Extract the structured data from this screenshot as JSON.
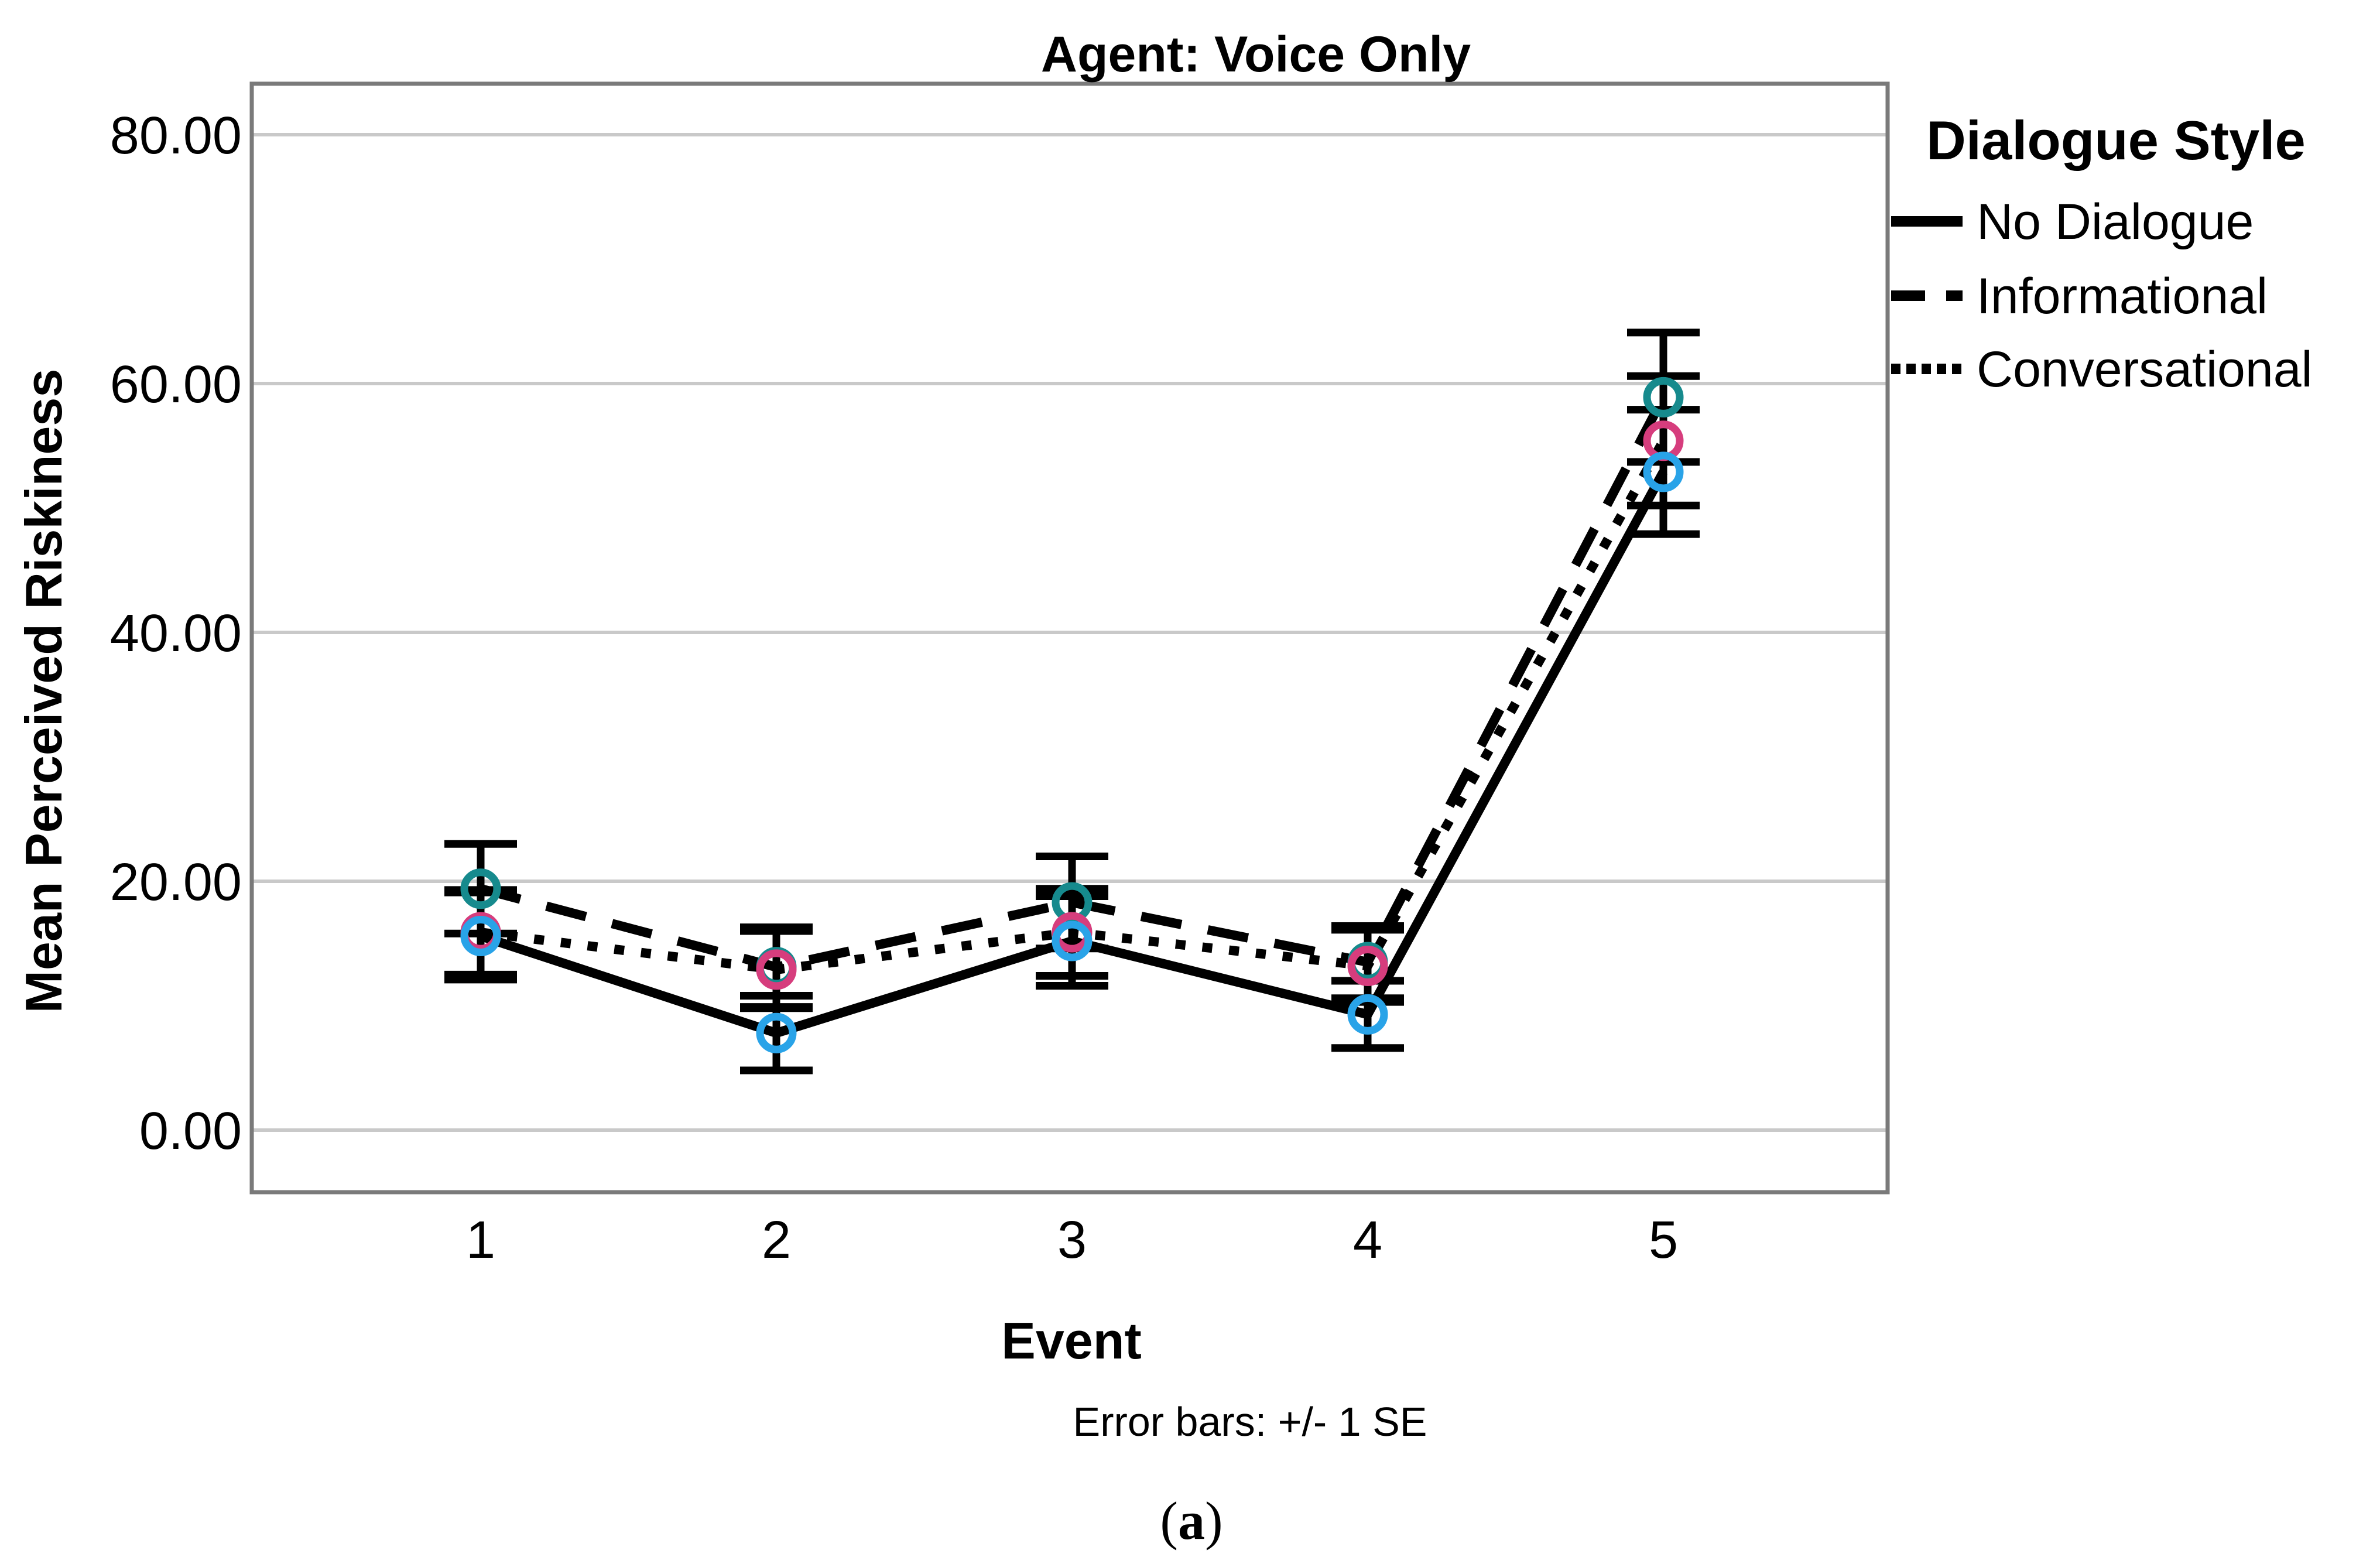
{
  "title": "Agent: Voice Only",
  "y_axis": {
    "title": "Mean Perceived Riskiness",
    "tick_labels": [
      "80.00",
      "60.00",
      "40.00",
      "20.00",
      "0.00"
    ],
    "tick_values": [
      80,
      60,
      40,
      20,
      0
    ]
  },
  "x_axis": {
    "title": "Event",
    "tick_labels": [
      "1",
      "2",
      "3",
      "4",
      "5"
    ]
  },
  "footnote": "Error bars: +/- 1 SE",
  "caption_open": "(",
  "caption_letter": "a",
  "caption_close": ")",
  "legend": {
    "title": "Dialogue Style",
    "entries": [
      {
        "label": "No Dialogue",
        "style": "solid"
      },
      {
        "label": "Informational",
        "style": "dashed"
      },
      {
        "label": "Conversational",
        "style": "dotted"
      }
    ]
  },
  "colors": {
    "line": "#000000",
    "gridline": "#c9c9c9",
    "frame": "#7a7a7a",
    "marker_no_dialogue": "#29a3e8",
    "marker_informational": "#168a8d",
    "marker_conversational": "#d63d7d",
    "background": "#ffffff"
  },
  "chart_data": {
    "type": "line",
    "title": "Agent: Voice Only",
    "xlabel": "Event",
    "ylabel": "Mean Perceived Riskiness",
    "x": [
      1,
      2,
      3,
      4,
      5
    ],
    "ylim": [
      0,
      80
    ],
    "ytick_step": 20,
    "grid": true,
    "legend_position": "right",
    "error_bar_note": "Error bars: +/- 1 SE",
    "series": [
      {
        "name": "No Dialogue",
        "dash": "solid",
        "marker_color": "#29a3e8",
        "values": [
          15.6,
          7.8,
          15.2,
          9.3,
          52.9
        ],
        "se": [
          3.5,
          3.0,
          3.6,
          2.7,
          5.0
        ]
      },
      {
        "name": "Informational",
        "dash": "dashed",
        "marker_color": "#168a8d",
        "values": [
          19.4,
          13.1,
          18.3,
          13.5,
          58.9
        ],
        "se": [
          3.6,
          3.2,
          3.7,
          2.9,
          5.2
        ]
      },
      {
        "name": "Conversational",
        "dash": "dotted",
        "marker_color": "#d63d7d",
        "values": [
          15.9,
          12.9,
          15.9,
          13.2,
          55.4
        ],
        "se": [
          3.4,
          3.1,
          3.5,
          2.9,
          5.2
        ]
      }
    ]
  }
}
